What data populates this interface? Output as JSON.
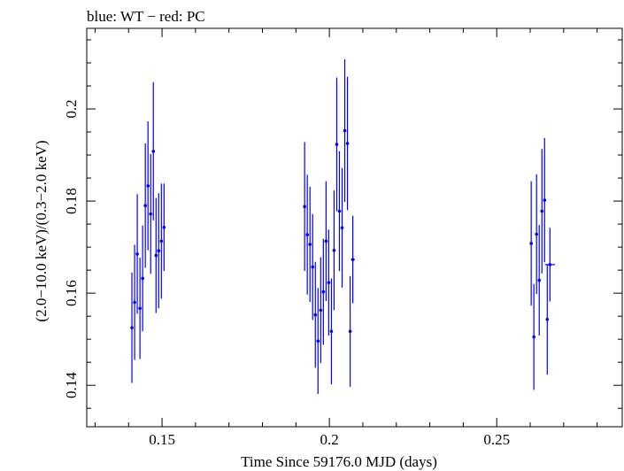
{
  "chart_data": {
    "type": "scatter",
    "title": "blue: WT − red: PC",
    "xlabel": "Time Since 59176.0 MJD (days)",
    "ylabel": "(2.0−10.0 keV)/(0.3−2.0 keV)",
    "xlim": [
      0.1275,
      0.2875
    ],
    "ylim": [
      0.131,
      0.2175
    ],
    "xticks": [
      0.15,
      0.2,
      0.25
    ],
    "xtick_labels": [
      "0.15",
      "0.2",
      "0.25"
    ],
    "yticks": [
      0.14,
      0.16,
      0.18,
      0.2
    ],
    "ytick_labels": [
      "0.14",
      "0.16",
      "0.18",
      "0.2"
    ],
    "grid": false,
    "colors": {
      "series": "#0000ff",
      "axes": "#000000"
    },
    "series": [
      {
        "marker": "dot-with-errorbars",
        "color": "#0000ff",
        "points": [
          {
            "x": 0.141,
            "y": 0.1525,
            "yerr": 0.012,
            "xerr": 0.0004
          },
          {
            "x": 0.1418,
            "y": 0.158,
            "yerr": 0.0125,
            "xerr": 0.0004
          },
          {
            "x": 0.1426,
            "y": 0.1685,
            "yerr": 0.013,
            "xerr": 0.0004
          },
          {
            "x": 0.1434,
            "y": 0.1567,
            "yerr": 0.011,
            "xerr": 0.0004
          },
          {
            "x": 0.1442,
            "y": 0.1632,
            "yerr": 0.0115,
            "xerr": 0.0004
          },
          {
            "x": 0.145,
            "y": 0.179,
            "yerr": 0.0135,
            "xerr": 0.0004
          },
          {
            "x": 0.1458,
            "y": 0.1833,
            "yerr": 0.014,
            "xerr": 0.0004
          },
          {
            "x": 0.1466,
            "y": 0.1772,
            "yerr": 0.013,
            "xerr": 0.0004
          },
          {
            "x": 0.1474,
            "y": 0.1908,
            "yerr": 0.015,
            "xerr": 0.0004
          },
          {
            "x": 0.1482,
            "y": 0.1682,
            "yerr": 0.0125,
            "xerr": 0.0004
          },
          {
            "x": 0.149,
            "y": 0.1692,
            "yerr": 0.0125,
            "xerr": 0.0004
          },
          {
            "x": 0.1498,
            "y": 0.1713,
            "yerr": 0.0125,
            "xerr": 0.0004
          },
          {
            "x": 0.1506,
            "y": 0.1743,
            "yerr": 0.0095,
            "xerr": 0.0004
          },
          {
            "x": 0.1926,
            "y": 0.1788,
            "yerr": 0.014,
            "xerr": 0.0004
          },
          {
            "x": 0.1934,
            "y": 0.1727,
            "yerr": 0.013,
            "xerr": 0.0004
          },
          {
            "x": 0.1942,
            "y": 0.1706,
            "yerr": 0.0125,
            "xerr": 0.0004
          },
          {
            "x": 0.195,
            "y": 0.1657,
            "yerr": 0.0115,
            "xerr": 0.0004
          },
          {
            "x": 0.1958,
            "y": 0.1553,
            "yerr": 0.0115,
            "xerr": 0.0004
          },
          {
            "x": 0.1966,
            "y": 0.1496,
            "yerr": 0.0115,
            "xerr": 0.0004
          },
          {
            "x": 0.1974,
            "y": 0.1563,
            "yerr": 0.0115,
            "xerr": 0.0004
          },
          {
            "x": 0.1982,
            "y": 0.1603,
            "yerr": 0.0115,
            "xerr": 0.0004
          },
          {
            "x": 0.199,
            "y": 0.1713,
            "yerr": 0.013,
            "xerr": 0.0004
          },
          {
            "x": 0.1998,
            "y": 0.1623,
            "yerr": 0.0115,
            "xerr": 0.0004
          },
          {
            "x": 0.2006,
            "y": 0.1517,
            "yerr": 0.0115,
            "xerr": 0.0004
          },
          {
            "x": 0.2014,
            "y": 0.1693,
            "yerr": 0.013,
            "xerr": 0.0004
          },
          {
            "x": 0.2022,
            "y": 0.1923,
            "yerr": 0.0145,
            "xerr": 0.0004
          },
          {
            "x": 0.203,
            "y": 0.1778,
            "yerr": 0.013,
            "xerr": 0.0004
          },
          {
            "x": 0.2038,
            "y": 0.1742,
            "yerr": 0.013,
            "xerr": 0.0004
          },
          {
            "x": 0.2046,
            "y": 0.1953,
            "yerr": 0.0155,
            "xerr": 0.0004
          },
          {
            "x": 0.2054,
            "y": 0.1925,
            "yerr": 0.0145,
            "xerr": 0.0004
          },
          {
            "x": 0.2062,
            "y": 0.1517,
            "yerr": 0.012,
            "xerr": 0.0004
          },
          {
            "x": 0.207,
            "y": 0.1673,
            "yerr": 0.0095,
            "xerr": 0.0006
          },
          {
            "x": 0.2603,
            "y": 0.1708,
            "yerr": 0.0135,
            "xerr": 0.0004
          },
          {
            "x": 0.2611,
            "y": 0.1505,
            "yerr": 0.0115,
            "xerr": 0.0004
          },
          {
            "x": 0.2619,
            "y": 0.1728,
            "yerr": 0.013,
            "xerr": 0.0004
          },
          {
            "x": 0.2627,
            "y": 0.1628,
            "yerr": 0.012,
            "xerr": 0.0004
          },
          {
            "x": 0.2635,
            "y": 0.1778,
            "yerr": 0.0135,
            "xerr": 0.0004
          },
          {
            "x": 0.2643,
            "y": 0.1802,
            "yerr": 0.0135,
            "xerr": 0.0004
          },
          {
            "x": 0.2651,
            "y": 0.1543,
            "yerr": 0.012,
            "xerr": 0.0004
          },
          {
            "x": 0.2659,
            "y": 0.1662,
            "yerr": 0.008,
            "xerr": 0.0015
          }
        ]
      }
    ]
  }
}
